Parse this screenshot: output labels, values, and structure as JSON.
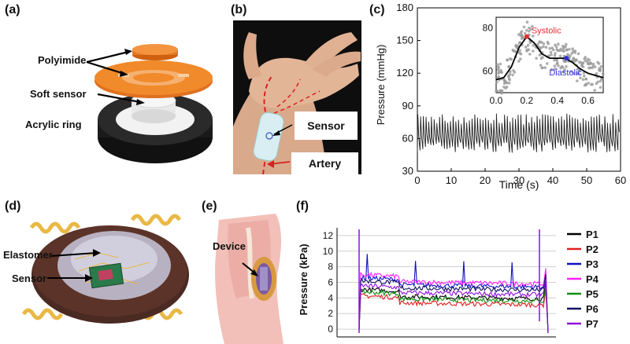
{
  "panels": {
    "a": {
      "label": "(a)",
      "callouts": [
        "Polyimide",
        "Soft sensor",
        "Acrylic ring"
      ]
    },
    "b": {
      "label": "(b)",
      "callouts": [
        "Sensor",
        "Artery"
      ]
    },
    "c": {
      "label": "(c)",
      "xlabel": "Time (s)",
      "ylabel": "Pressure (mmHg)",
      "inset": {
        "systolic_label": "Systolic",
        "diastolic_label": "Diastolic"
      }
    },
    "d": {
      "label": "(d)",
      "callouts": [
        "Elastomer",
        "Sensor"
      ]
    },
    "e": {
      "label": "(e)",
      "callouts": [
        "Device"
      ]
    },
    "f": {
      "label": "(f)",
      "ylabel": "Pressure (kPa)"
    }
  },
  "colors": {
    "orange": "#f08a2a",
    "ring": "#1a1a1a",
    "systolic": "#e03030",
    "diastolic": "#3030e0",
    "artery": "#d82020",
    "p_colors": [
      "#000000",
      "#e02020",
      "#1010c0",
      "#ff20ff",
      "#109010",
      "#101060",
      "#9010e0"
    ]
  },
  "chart_data": [
    {
      "type": "line",
      "panel": "c",
      "xlabel": "Time (s)",
      "ylabel": "Pressure (mmHg)",
      "xlim": [
        0,
        60
      ],
      "ylim": [
        30,
        180
      ],
      "xticks": [
        0,
        10,
        20,
        30,
        40,
        50,
        60
      ],
      "yticks": [
        30,
        60,
        90,
        120,
        150,
        180
      ],
      "series": [
        {
          "values": {
            "baseline": 63,
            "low": 52,
            "high": 78,
            "beats_per_second": 1.25
          }
        }
      ]
    },
    {
      "type": "scatter",
      "panel": "c-inset",
      "xlim": [
        0,
        0.7
      ],
      "ylim": [
        50,
        85
      ],
      "xticks": [
        "0.0",
        "0.2",
        "0.4",
        "0.6"
      ],
      "yticks": [
        "60",
        "80"
      ],
      "fit_curve": [
        [
          0.0,
          56
        ],
        [
          0.05,
          57
        ],
        [
          0.1,
          62
        ],
        [
          0.15,
          71
        ],
        [
          0.2,
          76
        ],
        [
          0.25,
          73
        ],
        [
          0.3,
          68
        ],
        [
          0.35,
          66
        ],
        [
          0.4,
          66
        ],
        [
          0.45,
          66
        ],
        [
          0.5,
          64
        ],
        [
          0.55,
          61
        ],
        [
          0.6,
          59
        ],
        [
          0.65,
          58
        ],
        [
          0.7,
          57
        ]
      ],
      "annotations": [
        {
          "text": "Systolic",
          "x": 0.2,
          "y": 76
        },
        {
          "text": "Diastolic",
          "x": 0.46,
          "y": 66
        }
      ]
    },
    {
      "type": "line",
      "panel": "f",
      "ylabel": "Pressure (kPa)",
      "ylim": [
        -1,
        13
      ],
      "yticks": [
        "0",
        "2",
        "4",
        "6",
        "8",
        "10",
        "12"
      ],
      "legend": "right",
      "series": [
        {
          "name": "P1",
          "level": 3.9
        },
        {
          "name": "P2",
          "level": 3.1
        },
        {
          "name": "P3",
          "level": 5.4
        },
        {
          "name": "P4",
          "level": 5.8
        },
        {
          "name": "P5",
          "level": 3.6
        },
        {
          "name": "P6",
          "level": 5.0
        },
        {
          "name": "P7",
          "level": 4.4
        }
      ]
    }
  ]
}
